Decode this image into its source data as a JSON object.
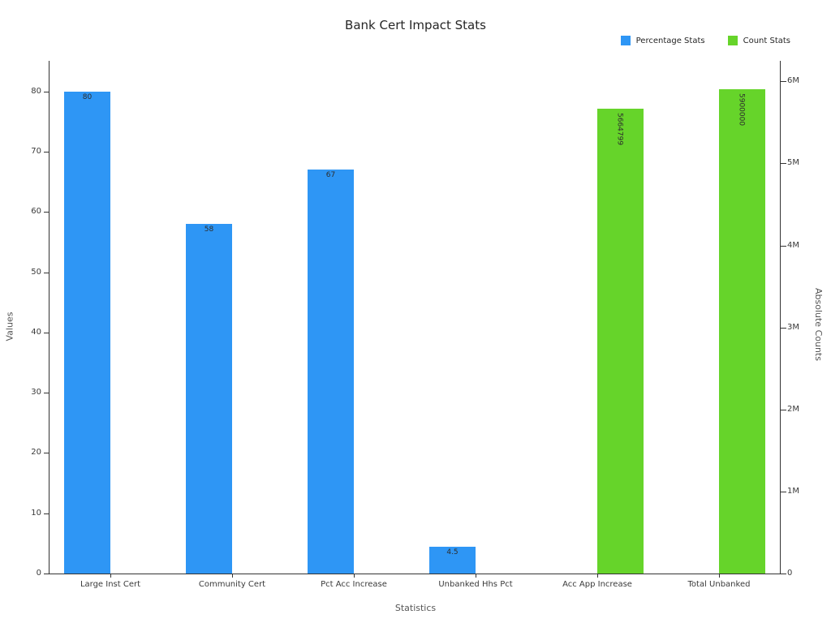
{
  "chart_data": {
    "type": "bar",
    "title": "Bank Cert Impact Stats",
    "xlabel": "Statistics",
    "ylabel_left": "Values",
    "ylabel_right": "Absolute Counts",
    "categories": [
      "Large Inst Cert",
      "Community Cert",
      "Pct Acc Increase",
      "Unbanked Hhs Pct",
      "Acc App Increase",
      "Total Unbanked"
    ],
    "series": [
      {
        "name": "Percentage Stats",
        "axis": "left",
        "color": "#2e96f5",
        "values": [
          80,
          58,
          67,
          4.5,
          null,
          null
        ],
        "labels": [
          "80",
          "58",
          "67",
          "4.5",
          null,
          null
        ]
      },
      {
        "name": "Count Stats",
        "axis": "right",
        "color": "#66d42a",
        "values": [
          null,
          null,
          null,
          null,
          5664799,
          5900000
        ],
        "labels": [
          null,
          null,
          null,
          null,
          "5664799",
          "5900000"
        ]
      }
    ],
    "left_axis": {
      "ticks": [
        "0",
        "10",
        "20",
        "30",
        "40",
        "50",
        "60",
        "70",
        "80"
      ],
      "tick_values": [
        0,
        10,
        20,
        30,
        40,
        50,
        60,
        70,
        80
      ],
      "max": 85.1
    },
    "right_axis": {
      "ticks": [
        "0",
        "1M",
        "2M",
        "3M",
        "4M",
        "5M",
        "6M"
      ],
      "tick_values": [
        0,
        1000000,
        2000000,
        3000000,
        4000000,
        5000000,
        6000000
      ],
      "max": 6250000
    },
    "legend_position": "top-right",
    "grid": false
  }
}
